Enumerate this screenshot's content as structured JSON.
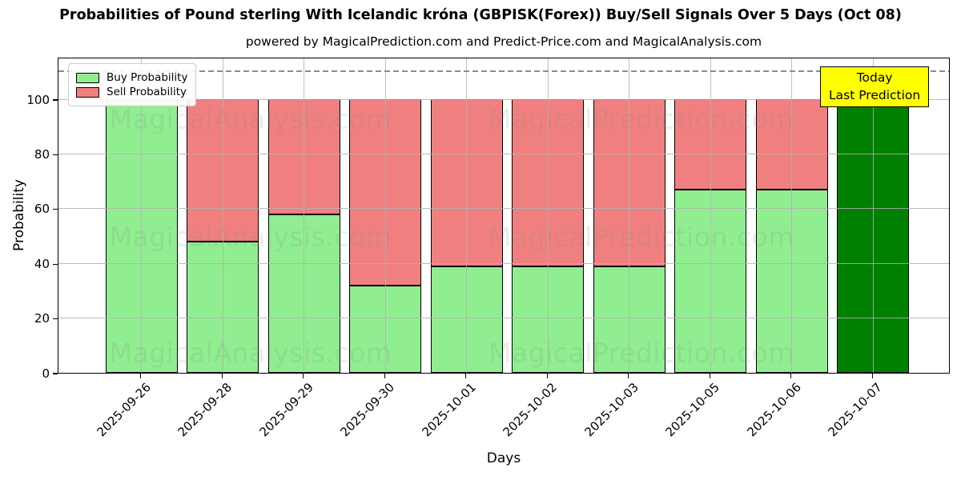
{
  "header": {
    "title": "Probabilities of Pound sterling With Icelandic króna (GBPISK(Forex)) Buy/Sell Signals Over 5 Days (Oct 08)",
    "subtitle": "powered by MagicalPrediction.com and Predict-Price.com and MagicalAnalysis.com"
  },
  "legend": {
    "buy_label": "Buy Probability",
    "sell_label": "Sell Probability"
  },
  "annotation": {
    "line1": "Today",
    "line2": "Last Prediction"
  },
  "watermarks": {
    "left": "MagicalAnalysis.com",
    "right": "MagicalPrediction.com"
  },
  "axes": {
    "xlabel": "Days",
    "ylabel": "Probability",
    "yticks": [
      0,
      20,
      40,
      60,
      80,
      100
    ],
    "ymax": 115.5,
    "dashed_line_y": 110,
    "grid": true,
    "legend_position": "upper left"
  },
  "colors": {
    "buy": "#90ee90",
    "sell": "#f08080",
    "today_bar": "#008000",
    "annotation_bg": "#ffff00",
    "grid": "#b0b0b0",
    "dashed_line": "#8c8c8c",
    "bar_edge": "#000000"
  },
  "chart_data": {
    "type": "bar",
    "stacked": true,
    "title": "Probabilities of Pound sterling With Icelandic króna (GBPISK(Forex)) Buy/Sell Signals Over 5 Days (Oct 08)",
    "xlabel": "Days",
    "ylabel": "Probability",
    "ylim": [
      0,
      115.5
    ],
    "categories": [
      "2025-09-26",
      "2025-09-28",
      "2025-09-29",
      "2025-09-30",
      "2025-10-01",
      "2025-10-02",
      "2025-10-03",
      "2025-10-05",
      "2025-10-06",
      "2025-10-07"
    ],
    "series": [
      {
        "name": "Buy Probability",
        "values": [
          100,
          48,
          58,
          32,
          39,
          39,
          39,
          67,
          67,
          100
        ]
      },
      {
        "name": "Sell Probability",
        "values": [
          0,
          52,
          42,
          68,
          61,
          61,
          61,
          33,
          33,
          0
        ]
      }
    ],
    "today_index": 9,
    "annotations": [
      {
        "text": "Today\nLast Prediction",
        "target_category": "2025-10-07"
      }
    ],
    "legend_position": "upper left",
    "grid": true
  }
}
